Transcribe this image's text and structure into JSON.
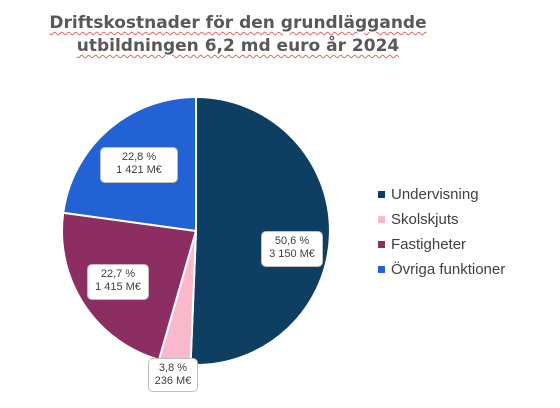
{
  "chart_data": {
    "type": "pie",
    "title_line1": "Driftskostnader för den grundläggande",
    "title_line2": "utbildningen 6,2 md euro år 2024",
    "slices": [
      {
        "name": "Undervisning",
        "percent": 50.6,
        "percent_label": "50,6 %",
        "value": 3150,
        "value_label": "3 150 M€",
        "color": "#0e3f62"
      },
      {
        "name": "Skolskjuts",
        "percent": 3.8,
        "percent_label": "3,8 %",
        "value": 236,
        "value_label": "236 M€",
        "color": "#f9b8cb"
      },
      {
        "name": "Fastigheter",
        "percent": 22.7,
        "percent_label": "22,7 %",
        "value": 1415,
        "value_label": "1 415 M€",
        "color": "#8c2e62"
      },
      {
        "name": "Övriga funktioner",
        "percent": 22.8,
        "percent_label": "22,8 %",
        "value": 1421,
        "value_label": "1 421 M€",
        "color": "#2362d4"
      }
    ],
    "legend_position": "right"
  }
}
